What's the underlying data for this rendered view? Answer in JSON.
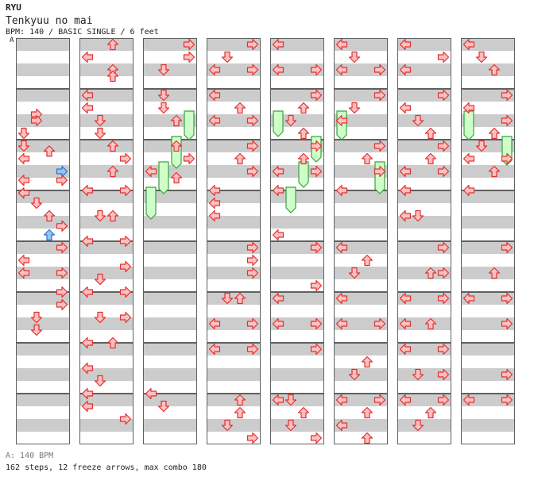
{
  "header": {
    "artist": "RYU",
    "title": "Tenkyuu no mai",
    "info": "BPM: 140 / BASIC SINGLE / 6 feet",
    "speed_marker": "A"
  },
  "footer": {
    "legend": "A: 140 BPM",
    "summary": "162 steps, 12 freeze arrows, max combo 180"
  },
  "colors": {
    "arrow_red_fill": "#ffc0c0",
    "arrow_red_stroke": "#e03030",
    "arrow_blue_fill": "#8ec6f8",
    "arrow_blue_stroke": "#3070c8",
    "freeze_fill": "#cfffc8",
    "freeze_stroke": "#3aa040",
    "stripe": "#cccccc",
    "measure_border": "#606060"
  },
  "chart_data": {
    "type": "step-chart",
    "columns": 8,
    "measures_per_column": 8,
    "beats_per_measure": 4,
    "lanes": [
      "left",
      "down",
      "up",
      "right"
    ],
    "notes": [
      {
        "m": 0,
        "p": 0,
        "l": "right"
      },
      {
        "m": 0,
        "p": 0.5,
        "l": "right"
      },
      {
        "m": 0,
        "p": 1,
        "l": "left"
      },
      {
        "m": 0,
        "p": 1,
        "l": "up"
      },
      {
        "m": 0,
        "p": 2,
        "l": "up"
      },
      {
        "m": 0,
        "p": 2.5,
        "l": "up"
      },
      {
        "m": 0,
        "p": 4,
        "l": "up"
      },
      {
        "m": 0,
        "p": 4.5,
        "l": "left"
      },
      {
        "m": 0,
        "p": 4.5,
        "l": "left"
      },
      {
        "m": 0,
        "p": 5,
        "l": "down"
      },
      {
        "m": 0,
        "p": 5.5,
        "l": "down"
      },
      {
        "m": 0,
        "p": 8,
        "l": "up"
      },
      {
        "m": 0,
        "p": 9,
        "l": "right"
      },
      {
        "m": 0,
        "p": 10,
        "l": "up"
      },
      {
        "m": 0,
        "p": 12,
        "l": "left"
      },
      {
        "m": 0,
        "p": 12,
        "l": "right"
      },
      {
        "m": 0,
        "p": 14,
        "l": "down"
      },
      {
        "m": 0,
        "p": 14,
        "l": "up"
      },
      {
        "m": 0,
        "p": 16,
        "l": "left"
      },
      {
        "m": 0,
        "p": 16,
        "l": "right"
      },
      {
        "m": 0,
        "p": 18,
        "l": "down"
      },
      {
        "m": 0,
        "p": 19,
        "l": "right"
      },
      {
        "m": 0,
        "p": 20,
        "l": "left"
      },
      {
        "m": 0,
        "p": 20,
        "l": "right"
      },
      {
        "m": 0,
        "p": 22,
        "l": "down"
      },
      {
        "m": 0,
        "p": 22,
        "l": "right"
      },
      {
        "m": 0,
        "p": 24,
        "l": "left"
      },
      {
        "m": 0,
        "p": 24,
        "l": "up"
      },
      {
        "m": 0,
        "p": 26,
        "l": "right"
      },
      {
        "m": 0,
        "p": 27,
        "l": "left"
      },
      {
        "m": 0,
        "p": 28,
        "l": "down"
      },
      {
        "m": 0,
        "p": 29,
        "l": "right"
      },
      {
        "m": 0,
        "p": 30,
        "l": "left"
      },
      {
        "m": 0,
        "p": 30,
        "l": "right"
      },
      {
        "m": 0,
        "p": 30.5,
        "l": "down"
      },
      {
        "m": 0,
        "p": 31,
        "l": "right"
      }
    ]
  }
}
